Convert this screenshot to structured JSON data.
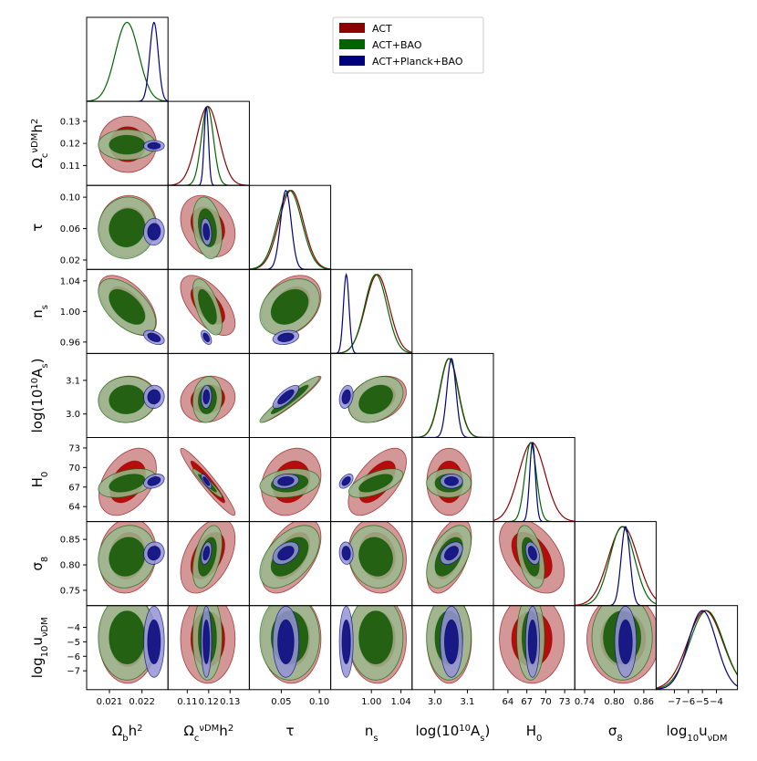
{
  "chart_data": {
    "type": "triangle",
    "colors": {
      "ACT": "#8b0000",
      "ACT+BAO": "#006400",
      "ACT+Planck+BAO": "#00007f"
    },
    "fills": {
      "ACT": [
        "#cd8585",
        "#b30000"
      ],
      "ACT+BAO": [
        "#99b88e",
        "#1a5c0a"
      ],
      "ACT+Planck+BAO": [
        "#9494d3",
        "#0f0f80"
      ]
    },
    "legend": {
      "position": "top-right",
      "entries": [
        {
          "key": "ACT",
          "label": "ACT"
        },
        {
          "key": "ACT+BAO",
          "label": "ACT+BAO"
        },
        {
          "key": "ACT+Planck+BAO",
          "label": "ACT+Planck+BAO"
        }
      ]
    },
    "params": [
      {
        "id": "ombh2",
        "label": "Ωbh2",
        "label_main": "Ω",
        "label_sub": "b",
        "label_tail": "h",
        "label_sup": "2",
        "range": [
          0.0203,
          0.0228
        ],
        "ticks": [
          0.021,
          0.022
        ],
        "tick_labels": [
          "0.021",
          "0.022"
        ]
      },
      {
        "id": "omch2",
        "label": "ΩcνDMh2",
        "label_main": "Ω",
        "label_sub": "c",
        "label_sup1": "νDM",
        "label_tail": "h",
        "label_sup": "2",
        "range": [
          0.101,
          0.139
        ],
        "ticks": [
          0.11,
          0.12,
          0.13
        ],
        "tick_labels": [
          "0.11",
          "0.12",
          "0.13"
        ]
      },
      {
        "id": "tau",
        "label": "τ",
        "range": [
          0.008,
          0.115
        ],
        "ticks": [
          0.02,
          0.06,
          0.1
        ],
        "y_tick_labels": [
          "0.02",
          "0.06",
          "0.10"
        ],
        "x_ticks": [
          0.05,
          0.1
        ],
        "x_tick_labels": [
          "0.05",
          "0.10"
        ]
      },
      {
        "id": "ns",
        "label": "ns",
        "label_main": "n",
        "label_sub": "s",
        "range": [
          0.945,
          1.055
        ],
        "ticks": [
          0.96,
          1.0,
          1.04
        ],
        "y_tick_labels": [
          "0.96",
          "1.00",
          "1.04"
        ],
        "x_ticks": [
          1.0,
          1.04
        ],
        "x_tick_labels": [
          "1.00",
          "1.04"
        ]
      },
      {
        "id": "logA",
        "label": "log(1010As)",
        "label_main": "log(10",
        "label_sup": "10",
        "label_tail": "A",
        "label_sub": "s",
        "range": [
          2.93,
          3.18
        ],
        "ticks": [
          3.0,
          3.1
        ],
        "tick_labels": [
          "3.0",
          "3.1"
        ]
      },
      {
        "id": "H0",
        "label": "H0",
        "label_main": "H",
        "label_sub": "0",
        "range": [
          61.7,
          74.6
        ],
        "ticks": [
          64,
          67,
          70,
          73
        ],
        "tick_labels": [
          "64",
          "67",
          "70",
          "73"
        ]
      },
      {
        "id": "sigma8",
        "label": "σ8",
        "label_main": "σ",
        "label_sub": "8",
        "range": [
          0.72,
          0.885
        ],
        "ticks": [
          0.75,
          0.8,
          0.85
        ],
        "y_tick_labels": [
          "0.75",
          "0.80",
          "0.85"
        ],
        "x_ticks": [
          0.74,
          0.8,
          0.86
        ],
        "x_tick_labels": [
          "0.74",
          "0.80",
          "0.86"
        ]
      },
      {
        "id": "logu",
        "label": "log10uνDM",
        "label_main": "log",
        "label_sub": "10",
        "label_tail": "u",
        "label_sub2": "νDM",
        "range": [
          -8.3,
          -2.5
        ],
        "ticks": [
          -7,
          -6,
          -5,
          -4
        ],
        "y_tick_labels": [
          "−4",
          "−5",
          "−6",
          "−7"
        ],
        "y_ticks": [
          -4,
          -5,
          -6,
          -7
        ],
        "x_ticks": [
          -7,
          -6,
          -5,
          -4
        ],
        "x_tick_labels": [
          "−7",
          "−6",
          "−5",
          "−4"
        ]
      }
    ],
    "series": [
      {
        "name": "ACT",
        "mean": [
          0.02156,
          0.1196,
          0.063,
          1.008,
          3.044,
          67.8,
          0.818,
          -4.8
        ],
        "sd": [
          0.00036,
          0.0052,
          0.016,
          0.016,
          0.028,
          2.1,
          0.03,
          1.25
        ]
      },
      {
        "name": "ACT+BAO",
        "mean": [
          0.02154,
          0.1194,
          0.061,
          1.006,
          3.043,
          67.6,
          0.816,
          -4.7
        ],
        "sd": [
          0.00036,
          0.0028,
          0.016,
          0.015,
          0.028,
          0.9,
          0.025,
          1.2
        ]
      },
      {
        "name": "ACT+Planck+BAO",
        "mean": [
          0.02237,
          0.1189,
          0.056,
          0.966,
          3.051,
          67.9,
          0.823,
          -5.0
        ],
        "sd": [
          0.00013,
          0.001,
          0.007,
          0.0038,
          0.014,
          0.45,
          0.009,
          1.0
        ]
      }
    ],
    "correlations": {
      "ACT": [
        [
          0,
          1,
          0.0
        ],
        [
          0,
          2,
          0.05
        ],
        [
          0,
          3,
          -0.55
        ],
        [
          0,
          4,
          0.05
        ],
        [
          0,
          5,
          0.4
        ],
        [
          0,
          6,
          0.1
        ],
        [
          0,
          7,
          0.0
        ],
        [
          1,
          2,
          -0.25
        ],
        [
          1,
          3,
          -0.6
        ],
        [
          1,
          4,
          0.1
        ],
        [
          1,
          5,
          -0.95
        ],
        [
          1,
          6,
          0.45
        ],
        [
          1,
          7,
          0.0
        ],
        [
          2,
          3,
          0.3
        ],
        [
          2,
          4,
          0.95
        ],
        [
          2,
          5,
          0.2
        ],
        [
          2,
          6,
          0.5
        ],
        [
          2,
          7,
          0.0
        ],
        [
          3,
          4,
          0.3
        ],
        [
          3,
          5,
          0.6
        ],
        [
          3,
          6,
          -0.1
        ],
        [
          3,
          7,
          0.0
        ],
        [
          4,
          5,
          0.0
        ],
        [
          4,
          6,
          0.5
        ],
        [
          4,
          7,
          0.0
        ],
        [
          5,
          6,
          -0.45
        ],
        [
          5,
          7,
          0.0
        ],
        [
          6,
          7,
          0.0
        ]
      ]
    }
  }
}
